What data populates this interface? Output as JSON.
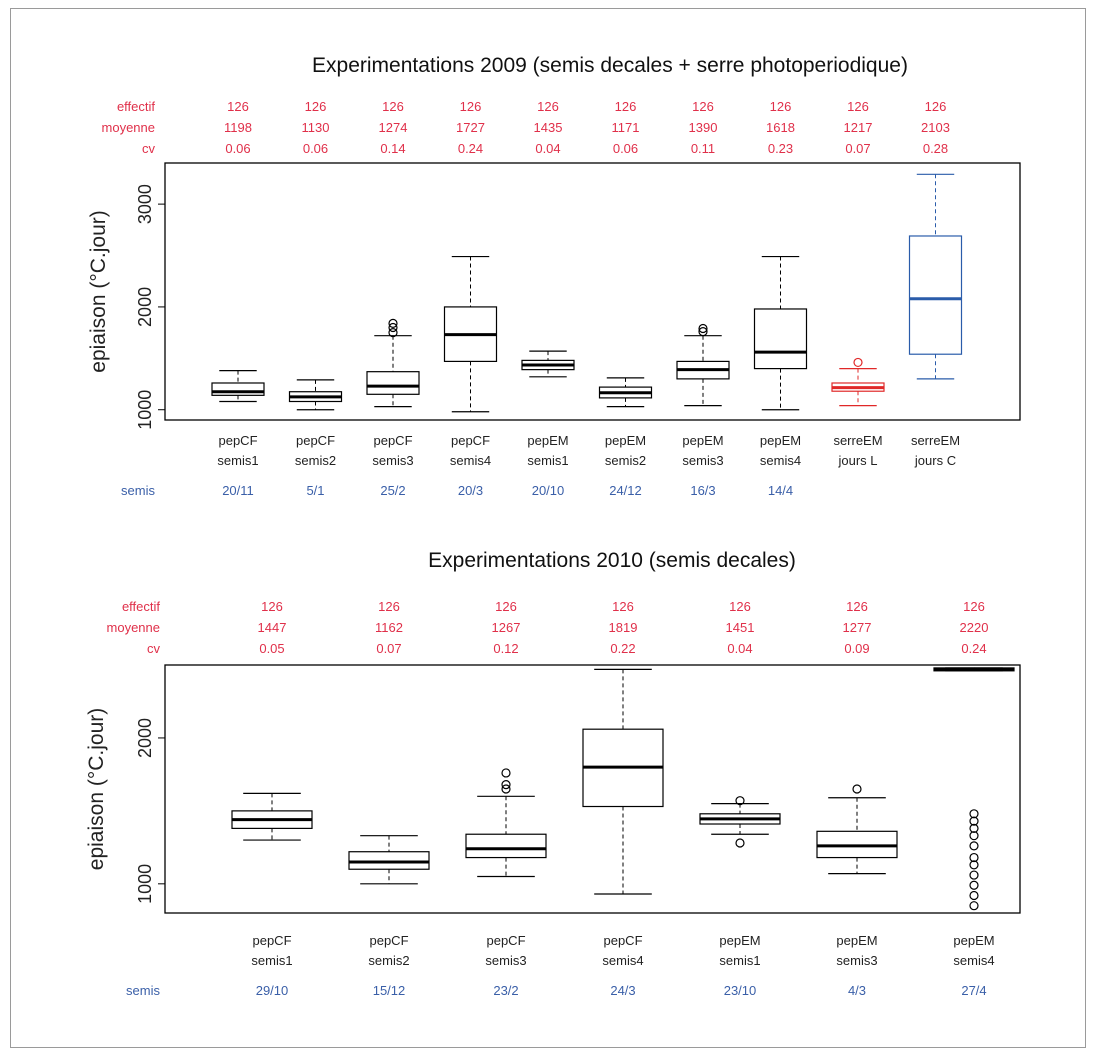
{
  "chart_data": [
    {
      "type": "box",
      "title": "Experimentations 2009 (semis decales + serre photoperiodique)",
      "ylabel": "epiaison (°C.jour)",
      "ylim": [
        900,
        3400
      ],
      "yticks": [
        1000,
        2000,
        3000
      ],
      "stat_labels": {
        "effectif": "effectif",
        "moyenne": "moyenne",
        "cv": "cv",
        "semis": "semis"
      },
      "groups": [
        {
          "line1": "pepCF",
          "line2": "semis1",
          "semis": "20/11",
          "effectif": "126",
          "moyenne": "1198",
          "cv": "0.06",
          "color": "#000000",
          "q1": 1140,
          "median": 1175,
          "q3": 1260,
          "wlo": 1080,
          "whi": 1380,
          "outliers": []
        },
        {
          "line1": "pepCF",
          "line2": "semis2",
          "semis": "5/1",
          "effectif": "126",
          "moyenne": "1130",
          "cv": "0.06",
          "color": "#000000",
          "q1": 1080,
          "median": 1125,
          "q3": 1175,
          "wlo": 1000,
          "whi": 1290,
          "outliers": []
        },
        {
          "line1": "pepCF",
          "line2": "semis3",
          "semis": "25/2",
          "effectif": "126",
          "moyenne": "1274",
          "cv": "0.14",
          "color": "#000000",
          "q1": 1150,
          "median": 1230,
          "q3": 1370,
          "wlo": 1030,
          "whi": 1720,
          "outliers": [
            1750,
            1800,
            1840
          ]
        },
        {
          "line1": "pepCF",
          "line2": "semis4",
          "semis": "20/3",
          "effectif": "126",
          "moyenne": "1727",
          "cv": "0.24",
          "color": "#000000",
          "q1": 1470,
          "median": 1730,
          "q3": 2000,
          "wlo": 980,
          "whi": 2490,
          "outliers": []
        },
        {
          "line1": "pepEM",
          "line2": "semis1",
          "semis": "20/10",
          "effectif": "126",
          "moyenne": "1435",
          "cv": "0.04",
          "color": "#000000",
          "q1": 1390,
          "median": 1435,
          "q3": 1480,
          "wlo": 1320,
          "whi": 1570,
          "outliers": []
        },
        {
          "line1": "pepEM",
          "line2": "semis2",
          "semis": "24/12",
          "effectif": "126",
          "moyenne": "1171",
          "cv": "0.06",
          "color": "#000000",
          "q1": 1115,
          "median": 1165,
          "q3": 1220,
          "wlo": 1030,
          "whi": 1310,
          "outliers": []
        },
        {
          "line1": "pepEM",
          "line2": "semis3",
          "semis": "16/3",
          "effectif": "126",
          "moyenne": "1390",
          "cv": "0.11",
          "color": "#000000",
          "q1": 1300,
          "median": 1390,
          "q3": 1470,
          "wlo": 1040,
          "whi": 1720,
          "outliers": [
            1760,
            1790
          ]
        },
        {
          "line1": "pepEM",
          "line2": "semis4",
          "semis": "14/4",
          "effectif": "126",
          "moyenne": "1618",
          "cv": "0.23",
          "color": "#000000",
          "q1": 1400,
          "median": 1560,
          "q3": 1980,
          "wlo": 1000,
          "whi": 2490,
          "outliers": []
        },
        {
          "line1": "serreEM",
          "line2": "jours L",
          "semis": "",
          "effectif": "126",
          "moyenne": "1217",
          "cv": "0.07",
          "color": "#e02828",
          "q1": 1180,
          "median": 1215,
          "q3": 1260,
          "wlo": 1040,
          "whi": 1400,
          "outliers": [
            1460
          ]
        },
        {
          "line1": "serreEM",
          "line2": "jours C",
          "semis": "",
          "effectif": "126",
          "moyenne": "2103",
          "cv": "0.28",
          "color": "#2a5caa",
          "q1": 1540,
          "median": 2080,
          "q3": 2690,
          "wlo": 1300,
          "whi": 3290,
          "outliers": []
        }
      ]
    },
    {
      "type": "box",
      "title": "Experimentations 2010 (semis decales)",
      "ylabel": "epiaison (°C.jour)",
      "ylim": [
        800,
        2500
      ],
      "yticks": [
        1000,
        2000
      ],
      "stat_labels": {
        "effectif": "effectif",
        "moyenne": "moyenne",
        "cv": "cv",
        "semis": "semis"
      },
      "groups": [
        {
          "line1": "pepCF",
          "line2": "semis1",
          "semis": "29/10",
          "effectif": "126",
          "moyenne": "1447",
          "cv": "0.05",
          "color": "#000000",
          "q1": 1380,
          "median": 1440,
          "q3": 1500,
          "wlo": 1300,
          "whi": 1620,
          "outliers": []
        },
        {
          "line1": "pepCF",
          "line2": "semis2",
          "semis": "15/12",
          "effectif": "126",
          "moyenne": "1162",
          "cv": "0.07",
          "color": "#000000",
          "q1": 1100,
          "median": 1150,
          "q3": 1220,
          "wlo": 1000,
          "whi": 1330,
          "outliers": []
        },
        {
          "line1": "pepCF",
          "line2": "semis3",
          "semis": "23/2",
          "effectif": "126",
          "moyenne": "1267",
          "cv": "0.12",
          "color": "#000000",
          "q1": 1180,
          "median": 1240,
          "q3": 1340,
          "wlo": 1050,
          "whi": 1600,
          "outliers": [
            1650,
            1680,
            1760
          ]
        },
        {
          "line1": "pepCF",
          "line2": "semis4",
          "semis": "24/3",
          "effectif": "126",
          "moyenne": "1819",
          "cv": "0.22",
          "color": "#000000",
          "q1": 1530,
          "median": 1800,
          "q3": 2060,
          "wlo": 930,
          "whi": 2470,
          "outliers": []
        },
        {
          "line1": "pepEM",
          "line2": "semis1",
          "semis": "23/10",
          "effectif": "126",
          "moyenne": "1451",
          "cv": "0.04",
          "color": "#000000",
          "q1": 1410,
          "median": 1445,
          "q3": 1480,
          "wlo": 1340,
          "whi": 1550,
          "outliers": [
            1280,
            1570
          ]
        },
        {
          "line1": "pepEM",
          "line2": "semis3",
          "semis": "4/3",
          "effectif": "126",
          "moyenne": "1277",
          "cv": "0.09",
          "color": "#000000",
          "q1": 1180,
          "median": 1260,
          "q3": 1360,
          "wlo": 1070,
          "whi": 1590,
          "outliers": [
            1650
          ]
        },
        {
          "line1": "pepEM",
          "line2": "semis4",
          "semis": "27/4",
          "effectif": "126",
          "moyenne": "2220",
          "cv": "0.24",
          "color": "#000000",
          "q1": 2460,
          "median": 2470,
          "q3": 2480,
          "wlo": 2460,
          "whi": 2480,
          "outliers": [
            850,
            920,
            990,
            1060,
            1130,
            1180,
            1260,
            1330,
            1380,
            1430,
            1480
          ]
        }
      ]
    }
  ]
}
